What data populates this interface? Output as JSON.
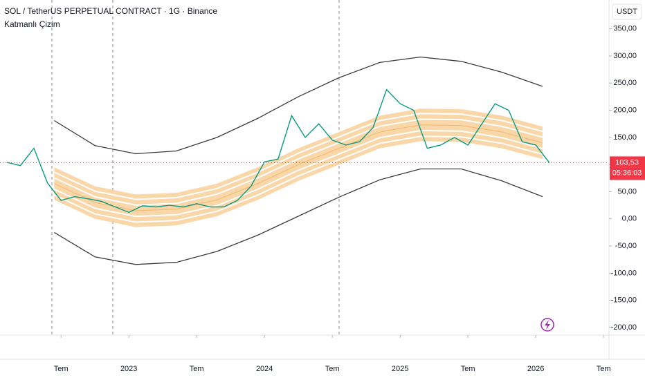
{
  "chart_data": {
    "type": "line",
    "title": "SOL / TetherUS PERPETUAL CONTRACT · 1G · Binance",
    "subtitle": "Katmanlı Çizim",
    "currency": "USDT",
    "xlim": [
      2022.05,
      2026.54
    ],
    "xticks": [
      {
        "value": 2022.5,
        "label": "Tem"
      },
      2023,
      {
        "value": 2023.5,
        "label": "Tem"
      },
      2024,
      {
        "value": 2024.5,
        "label": "Tem"
      },
      2025,
      {
        "value": 2025.5,
        "label": "Tem"
      },
      2026,
      {
        "value": 2026.5,
        "label": "Tem"
      }
    ],
    "ylim": [
      -214,
      403
    ],
    "yticks": [
      {
        "value": 350,
        "label": "350,00"
      },
      {
        "value": 300,
        "label": "300,00"
      },
      {
        "value": 250,
        "label": "250,00"
      },
      {
        "value": 200,
        "label": "200,00"
      },
      {
        "value": 150,
        "label": "150,00"
      },
      {
        "value": 100,
        "label": "100,00"
      },
      {
        "value": 50,
        "label": "50,00"
      },
      {
        "value": 0,
        "label": "0,00"
      },
      {
        "value": -50,
        "label": "-50,00"
      },
      {
        "value": -100,
        "label": "-100,00"
      },
      {
        "value": -150,
        "label": "-150,00"
      },
      {
        "value": -200,
        "label": "-200,00"
      }
    ],
    "grid": false,
    "last_price": {
      "value": 103.53,
      "label": "103,53",
      "color": "#f23645"
    },
    "countdown": "05:36:03",
    "series": [
      {
        "color": "#089981",
        "x": [
          2022.1,
          2022.2,
          2022.3,
          2022.4,
          2022.5,
          2022.6,
          2022.7,
          2022.8,
          2022.9,
          2023.0,
          2023.1,
          2023.2,
          2023.3,
          2023.4,
          2023.5,
          2023.6,
          2023.7,
          2023.8,
          2023.9,
          2024.0,
          2024.1,
          2024.2,
          2024.3,
          2024.4,
          2024.5,
          2024.6,
          2024.7,
          2024.8,
          2024.9,
          2025.0,
          2025.1,
          2025.2,
          2025.3,
          2025.4,
          2025.5,
          2025.6,
          2025.7,
          2025.8,
          2025.9,
          2026.0,
          2026.1
        ],
        "values": [
          104,
          98,
          130,
          66,
          34,
          41,
          37,
          32,
          22,
          12,
          24,
          22,
          25,
          22,
          28,
          22,
          22,
          34,
          60,
          105,
          110,
          190,
          150,
          175,
          145,
          136,
          142,
          168,
          238,
          212,
          200,
          130,
          136,
          150,
          136,
          174,
          212,
          200,
          142,
          136,
          103.53
        ]
      },
      {
        "color": "#3a3a3a",
        "x": [
          2022.45,
          2022.75,
          2023.05,
          2023.35,
          2023.65,
          2023.95,
          2024.25,
          2024.55,
          2024.85,
          2025.15,
          2025.45,
          2025.75,
          2026.05
        ],
        "values": [
          181,
          135,
          120,
          125,
          150,
          185,
          225,
          260,
          288,
          298,
          290,
          270,
          244
        ]
      },
      {
        "color": "#3a3a3a",
        "x": [
          2022.45,
          2022.75,
          2023.05,
          2023.35,
          2023.65,
          2023.95,
          2024.25,
          2024.55,
          2024.85,
          2025.15,
          2025.45,
          2025.75,
          2026.05
        ],
        "values": [
          -25,
          -70,
          -84,
          -80,
          -60,
          -30,
          5,
          40,
          72,
          92,
          92,
          70,
          41
        ]
      },
      {
        "color": "#f9d5a3",
        "band": 30,
        "x": [
          2022.45,
          2022.75,
          2023.05,
          2023.35,
          2023.65,
          2023.95,
          2024.25,
          2024.55,
          2024.85,
          2025.15,
          2025.45,
          2025.75,
          2026.05
        ],
        "values": [
          65,
          30,
          15,
          18,
          35,
          65,
          100,
          130,
          160,
          173,
          172,
          160,
          140
        ]
      }
    ]
  }
}
